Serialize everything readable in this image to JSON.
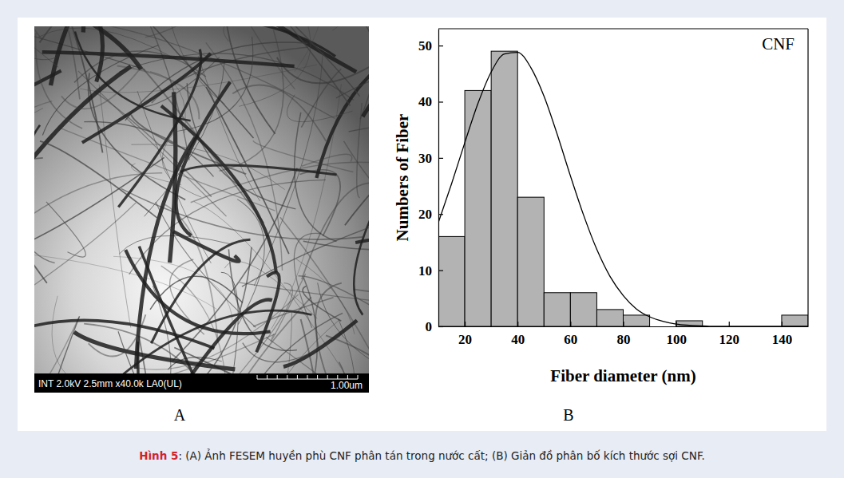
{
  "caption": {
    "label": "Hình 5",
    "text": ": (A) Ảnh FESEM huyền phù CNF phân tán trong nước cất; (B) Giản đồ phân bố kích thước sợi CNF."
  },
  "panel_labels": [
    "A",
    "B"
  ],
  "micrograph": {
    "info": "INT 2.0kV 2.5mm x40.0k LA0(UL)",
    "scale_bar": "1.00um"
  },
  "chart_data": {
    "type": "histogram",
    "annotation": "CNF",
    "xlabel": "Fiber diameter (nm)",
    "ylabel": "Numbers of Fiber",
    "bins": [
      10,
      20,
      30,
      40,
      50,
      60,
      70,
      80,
      90,
      100,
      110,
      120,
      130,
      140,
      150
    ],
    "counts": [
      16,
      42,
      49,
      23,
      6,
      6,
      3,
      2,
      0,
      1,
      0,
      0,
      0,
      2
    ],
    "color": "#b3b3b3",
    "fit": {
      "type": "line",
      "color": "#000000",
      "x": [
        10,
        15,
        20,
        25,
        30,
        35,
        40,
        45,
        50,
        55,
        60,
        65,
        70,
        75,
        80,
        85,
        90,
        95,
        100,
        105,
        110,
        115,
        120,
        125,
        130,
        135,
        140,
        145,
        150
      ],
      "values": [
        18.5,
        25.4,
        32.7,
        39.7,
        45.3,
        48.5,
        48.8,
        46.1,
        41.0,
        34.2,
        26.8,
        19.8,
        13.7,
        8.9,
        5.5,
        3.1,
        1.7,
        0.9,
        0.4,
        0.2,
        0.1,
        0,
        0,
        0,
        0,
        0,
        0,
        0,
        0
      ]
    },
    "xlim": [
      10,
      150
    ],
    "ylim": [
      0,
      53
    ],
    "xticks": [
      20,
      40,
      60,
      80,
      100,
      120,
      140
    ],
    "yticks": [
      0,
      10,
      20,
      30,
      40,
      50
    ],
    "grid": false
  }
}
